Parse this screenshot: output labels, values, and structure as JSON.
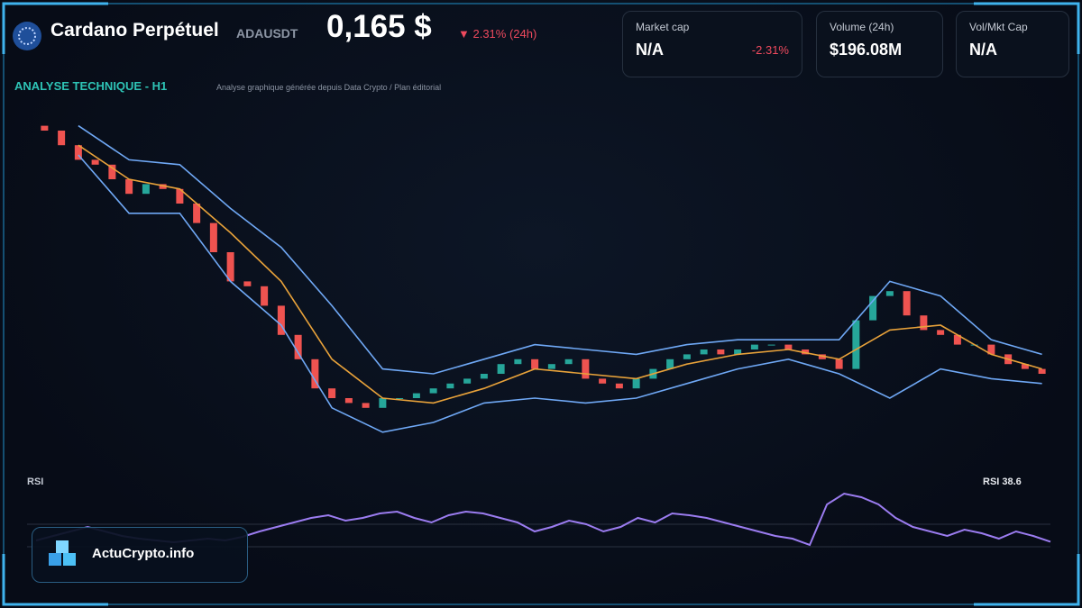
{
  "header": {
    "title": "Cardano Perpétuel",
    "symbol": "ADAUSDT",
    "price": "0,165 $",
    "change": "▼ 2.31% (24h)"
  },
  "cards": [
    {
      "label": "Market cap",
      "value": "N/A",
      "change": "-2.31%"
    },
    {
      "label": "Volume (24h)",
      "value": "$196.08M"
    },
    {
      "label": "Vol/Mkt Cap",
      "value": "N/A"
    }
  ],
  "brand": "ActuCrypto.info",
  "chart_data": [
    {
      "type": "candlestick",
      "title": "ANALYSE TECHNIQUE - H1",
      "subtitle": "Analyse graphique générée depuis Data Crypto / Plan éditorial",
      "open": [
        0.216,
        0.215,
        0.212,
        0.209,
        0.208,
        0.205,
        0.202,
        0.204,
        0.203,
        0.2,
        0.196,
        0.19,
        0.184,
        0.183,
        0.179,
        0.173,
        0.168,
        0.162,
        0.16,
        0.159,
        0.158,
        0.16,
        0.16,
        0.161,
        0.162,
        0.163,
        0.164,
        0.165,
        0.167,
        0.168,
        0.166,
        0.167,
        0.168,
        0.164,
        0.163,
        0.162,
        0.164,
        0.166,
        0.168,
        0.169,
        0.17,
        0.169,
        0.17,
        0.171,
        0.171,
        0.17,
        0.169,
        0.168,
        0.166,
        0.176,
        0.181,
        0.182,
        0.177,
        0.174,
        0.173,
        0.171,
        0.171,
        0.169,
        0.167,
        0.166
      ],
      "close": [
        0.215,
        0.212,
        0.209,
        0.208,
        0.205,
        0.202,
        0.204,
        0.203,
        0.2,
        0.196,
        0.19,
        0.184,
        0.183,
        0.179,
        0.173,
        0.168,
        0.162,
        0.16,
        0.159,
        0.158,
        0.16,
        0.16,
        0.161,
        0.162,
        0.163,
        0.164,
        0.165,
        0.167,
        0.168,
        0.166,
        0.167,
        0.168,
        0.164,
        0.163,
        0.162,
        0.164,
        0.166,
        0.168,
        0.169,
        0.17,
        0.169,
        0.17,
        0.171,
        0.171,
        0.17,
        0.169,
        0.168,
        0.166,
        0.176,
        0.181,
        0.182,
        0.177,
        0.174,
        0.173,
        0.171,
        0.171,
        0.169,
        0.167,
        0.166,
        0.165
      ],
      "up_color": "#26a69a",
      "down_color": "#ef5350",
      "series": [
        {
          "color": "#6fa8f5",
          "x": [
            2,
            5,
            8,
            11,
            14,
            17,
            20,
            23,
            26,
            29,
            32,
            35,
            38,
            41,
            44,
            47,
            50,
            53,
            56,
            59
          ],
          "values": [
            0.216,
            0.209,
            0.208,
            0.199,
            0.191,
            0.179,
            0.166,
            0.165,
            0.168,
            0.171,
            0.17,
            0.169,
            0.171,
            0.172,
            0.172,
            0.172,
            0.184,
            0.181,
            0.172,
            0.169
          ]
        },
        {
          "color": "#e8a23a",
          "x": [
            2,
            5,
            8,
            11,
            14,
            17,
            20,
            23,
            26,
            29,
            32,
            35,
            38,
            41,
            44,
            47,
            50,
            53,
            56,
            59
          ],
          "values": [
            0.212,
            0.205,
            0.203,
            0.194,
            0.184,
            0.168,
            0.16,
            0.159,
            0.162,
            0.166,
            0.165,
            0.164,
            0.167,
            0.169,
            0.17,
            0.168,
            0.174,
            0.175,
            0.169,
            0.166
          ]
        },
        {
          "color": "#6fa8f5",
          "x": [
            2,
            5,
            8,
            11,
            14,
            17,
            20,
            23,
            26,
            29,
            32,
            35,
            38,
            41,
            44,
            47,
            50,
            53,
            56,
            59
          ],
          "values": [
            0.21,
            0.198,
            0.198,
            0.184,
            0.175,
            0.158,
            0.153,
            0.155,
            0.159,
            0.16,
            0.159,
            0.16,
            0.163,
            0.166,
            0.168,
            0.165,
            0.16,
            0.166,
            0.164,
            0.163
          ]
        }
      ],
      "xlim": [
        0,
        59
      ],
      "ylim": [
        0.15,
        0.22
      ]
    },
    {
      "type": "line",
      "title": "RSI",
      "label": "RSI 38.6",
      "color": "#9b7cf0",
      "values": [
        40,
        45,
        50,
        55,
        50,
        45,
        42,
        40,
        38,
        40,
        42,
        40,
        44,
        50,
        55,
        60,
        65,
        68,
        62,
        65,
        70,
        72,
        65,
        60,
        68,
        72,
        70,
        65,
        60,
        50,
        55,
        62,
        58,
        50,
        55,
        65,
        60,
        70,
        68,
        65,
        60,
        55,
        50,
        45,
        42,
        35,
        80,
        92,
        88,
        80,
        65,
        55,
        50,
        45,
        52,
        48,
        42,
        50,
        45,
        38.6
      ],
      "ylim": [
        0,
        100
      ]
    }
  ]
}
